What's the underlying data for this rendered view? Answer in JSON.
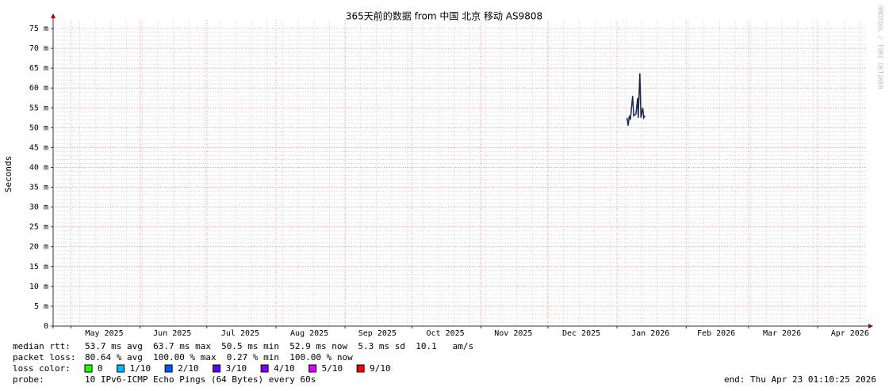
{
  "chart_data": {
    "type": "line",
    "title": "365天前的数据 from 中国 北京 移动 AS9808",
    "ylabel": "Seconds",
    "watermark": "RRDTOOL / TOBI OETIKER",
    "xlim": [
      "2025-04-23T01:10",
      "2026-04-23T01:10"
    ],
    "xticks": [
      {
        "value": "2025-05-16T00:00",
        "label": "May 2025"
      },
      {
        "value": "2025-06-15T12:00",
        "label": "Jun 2025"
      },
      {
        "value": "2025-07-16T00:00",
        "label": "Jul 2025"
      },
      {
        "value": "2025-08-16T00:00",
        "label": "Aug 2025"
      },
      {
        "value": "2025-09-15T12:00",
        "label": "Sep 2025"
      },
      {
        "value": "2025-10-16T00:00",
        "label": "Oct 2025"
      },
      {
        "value": "2025-11-15T12:00",
        "label": "Nov 2025"
      },
      {
        "value": "2025-12-16T00:00",
        "label": "Dec 2025"
      },
      {
        "value": "2026-01-16T00:00",
        "label": "Jan 2026"
      },
      {
        "value": "2026-02-14T12:00",
        "label": "Feb 2026"
      },
      {
        "value": "2026-03-16T00:00",
        "label": "Mar 2026"
      },
      {
        "value": "2026-04-15T12:00",
        "label": "Apr 2026"
      }
    ],
    "x_major_grid": [
      "2025-05-01T00:00",
      "2025-06-01T00:00",
      "2025-07-01T00:00",
      "2025-08-01T00:00",
      "2025-09-01T00:00",
      "2025-10-01T00:00",
      "2025-11-01T00:00",
      "2025-12-01T00:00",
      "2026-01-01T00:00",
      "2026-02-01T00:00",
      "2026-03-01T00:00",
      "2026-04-01T00:00"
    ],
    "ylim": [
      0,
      0.075
    ],
    "yticks": [
      0,
      {
        "value": 0.005,
        "label": "5 m"
      },
      {
        "value": 0.01,
        "label": "10 m"
      },
      {
        "value": 0.015,
        "label": "15 m"
      },
      {
        "value": 0.02,
        "label": "20 m"
      },
      {
        "value": 0.025,
        "label": "25 m"
      },
      {
        "value": 0.03,
        "label": "30 m"
      },
      {
        "value": 0.035,
        "label": "35 m"
      },
      {
        "value": 0.04,
        "label": "40 m"
      },
      {
        "value": 0.045,
        "label": "45 m"
      },
      {
        "value": 0.05,
        "label": "50 m"
      },
      {
        "value": 0.055,
        "label": "55 m"
      },
      {
        "value": 0.06,
        "label": "60 m"
      },
      {
        "value": 0.065,
        "label": "65 m"
      },
      {
        "value": 0.07,
        "label": "70 m"
      },
      {
        "value": 0.075,
        "label": "75 m"
      }
    ],
    "grid": true,
    "minor_grid": true,
    "x": [
      "2026-01-05T12:00",
      "2026-01-06T00:00",
      "2026-01-06T12:00",
      "2026-01-07T00:00",
      "2026-01-08T00:00",
      "2026-01-08T12:00",
      "2026-01-09T12:00",
      "2026-01-10T06:00",
      "2026-01-10T12:00",
      "2026-01-11T06:00",
      "2026-01-11T18:00",
      "2026-01-12T12:00",
      "2026-01-13T00:00",
      "2026-01-13T12:00"
    ],
    "values": [
      0.0525,
      0.0505,
      0.053,
      0.052,
      0.058,
      0.053,
      0.0535,
      0.0575,
      0.0525,
      0.0637,
      0.0525,
      0.055,
      0.0525,
      0.053
    ],
    "color": "#1a2a4a",
    "footer": {
      "median_rtt": {
        "label": "median rtt:",
        "text": "53.7 ms avg  63.7 ms max  50.5 ms min  52.9 ms now  5.3 ms sd  10.1   am/s"
      },
      "packet_loss": {
        "label": "packet loss:",
        "text": "80.64 % avg  100.00 % max  0.27 % min  100.00 % now"
      },
      "loss_color": {
        "label": "loss color:",
        "items": [
          {
            "label": "0",
            "color": "#26ff00"
          },
          {
            "label": "1/10",
            "color": "#00b8ff"
          },
          {
            "label": "2/10",
            "color": "#0059ff"
          },
          {
            "label": "3/10",
            "color": "#5e00ff"
          },
          {
            "label": "4/10",
            "color": "#7e00ff"
          },
          {
            "label": "5/10",
            "color": "#dd00ff"
          },
          {
            "label": "9/10",
            "color": "#ff0000"
          }
        ]
      },
      "probe": {
        "label": "probe:",
        "text": "10 IPv6-ICMP Echo Pings (64 Bytes) every 60s"
      },
      "end": "end: Thu Apr 23 01:10:25 2026"
    }
  }
}
